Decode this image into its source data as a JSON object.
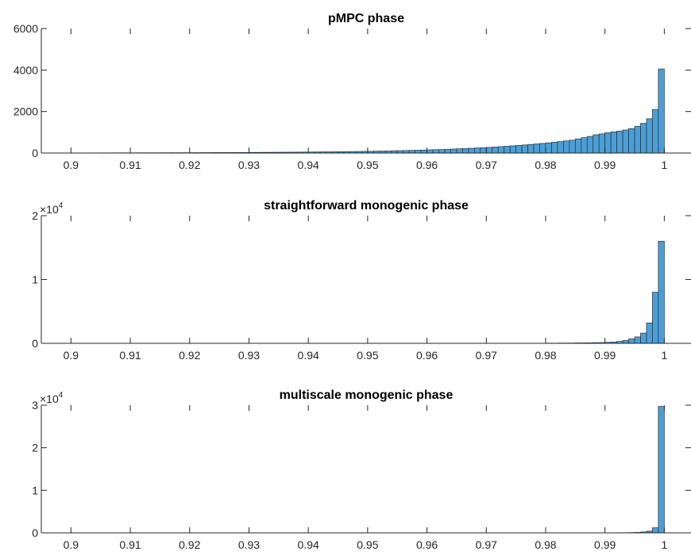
{
  "chart_data": [
    {
      "type": "bar",
      "title": "pMPC phase",
      "xlabel": "",
      "ylabel": "",
      "xlim": [
        0.895,
        1.0045
      ],
      "ylim": [
        0,
        6000
      ],
      "x_ticks": [
        0.9,
        0.91,
        0.92,
        0.93,
        0.94,
        0.95,
        0.96,
        0.97,
        0.98,
        0.99,
        1.0
      ],
      "x_tick_labels": [
        "0.9",
        "0.91",
        "0.92",
        "0.93",
        "0.94",
        "0.95",
        "0.96",
        "0.97",
        "0.98",
        "0.99",
        "1"
      ],
      "y_ticks": [
        0,
        2000,
        4000,
        6000
      ],
      "y_tick_labels": [
        "0",
        "2000",
        "4000",
        "6000"
      ],
      "y_exponent": "",
      "grid": false,
      "bar_color": "#4C9FD6",
      "edge_color": "#1F2F3F",
      "bin_start": 0.9,
      "bin_width": 0.001,
      "values": [
        5,
        6,
        6,
        7,
        7,
        8,
        8,
        9,
        9,
        10,
        10,
        11,
        11,
        12,
        12,
        13,
        14,
        14,
        15,
        16,
        17,
        18,
        19,
        20,
        21,
        22,
        23,
        24,
        25,
        26,
        28,
        29,
        31,
        33,
        35,
        37,
        39,
        41,
        43,
        46,
        48,
        51,
        54,
        57,
        60,
        64,
        67,
        71,
        75,
        80,
        85,
        90,
        95,
        101,
        107,
        113,
        120,
        127,
        135,
        143,
        152,
        161,
        171,
        181,
        192,
        204,
        216,
        229,
        243,
        258,
        273,
        290,
        307,
        326,
        345,
        366,
        388,
        412,
        436,
        462,
        490,
        520,
        552,
        585,
        620,
        680,
        740,
        800,
        880,
        920,
        980,
        1020,
        1060,
        1110,
        1180,
        1290,
        1430,
        1650,
        2100,
        4050
      ]
    },
    {
      "type": "bar",
      "title": "straightforward monogenic phase",
      "xlabel": "",
      "ylabel": "",
      "xlim": [
        0.895,
        1.0045
      ],
      "ylim": [
        0,
        2
      ],
      "x_ticks": [
        0.9,
        0.91,
        0.92,
        0.93,
        0.94,
        0.95,
        0.96,
        0.97,
        0.98,
        0.99,
        1.0
      ],
      "x_tick_labels": [
        "0.9",
        "0.91",
        "0.92",
        "0.93",
        "0.94",
        "0.95",
        "0.96",
        "0.97",
        "0.98",
        "0.99",
        "1"
      ],
      "y_ticks": [
        0,
        1,
        2
      ],
      "y_tick_labels": [
        "0",
        "1",
        "2"
      ],
      "y_exponent": "4",
      "grid": false,
      "bar_color": "#4C9FD6",
      "edge_color": "#1F2F3F",
      "bin_start": 0.9,
      "bin_width": 0.001,
      "values": [
        0,
        0,
        0,
        0,
        0,
        0,
        0,
        0,
        0,
        0,
        0,
        0,
        0,
        0,
        0,
        0,
        0,
        0,
        0,
        0,
        0,
        0,
        0,
        0,
        0,
        0,
        0,
        0,
        0,
        0,
        0,
        0,
        0,
        0,
        0,
        0,
        0,
        0,
        0,
        0,
        0,
        0,
        0,
        0,
        0,
        0,
        0,
        0,
        0,
        0,
        0,
        0,
        0,
        0,
        0,
        0,
        0,
        0,
        0,
        0,
        0,
        0,
        0,
        0,
        0,
        0,
        0,
        0,
        0,
        0,
        0,
        0,
        0,
        0,
        0,
        0,
        0.001,
        0.001,
        0.002,
        0.002,
        0.003,
        0.003,
        0.004,
        0.004,
        0.005,
        0.006,
        0.007,
        0.008,
        0.01,
        0.012,
        0.015,
        0.02,
        0.03,
        0.045,
        0.07,
        0.1,
        0.16,
        0.32,
        0.8,
        1.6
      ]
    },
    {
      "type": "bar",
      "title": "multiscale monogenic phase",
      "xlabel": "",
      "ylabel": "",
      "xlim": [
        0.895,
        1.0045
      ],
      "ylim": [
        0,
        3
      ],
      "x_ticks": [
        0.9,
        0.91,
        0.92,
        0.93,
        0.94,
        0.95,
        0.96,
        0.97,
        0.98,
        0.99,
        1.0
      ],
      "x_tick_labels": [
        "0.9",
        "0.91",
        "0.92",
        "0.93",
        "0.94",
        "0.95",
        "0.96",
        "0.97",
        "0.98",
        "0.99",
        "1"
      ],
      "y_ticks": [
        0,
        1,
        2,
        3
      ],
      "y_tick_labels": [
        "0",
        "1",
        "2",
        "3"
      ],
      "y_exponent": "4",
      "grid": false,
      "bar_color": "#4C9FD6",
      "edge_color": "#1F2F3F",
      "bin_start": 0.9,
      "bin_width": 0.001,
      "values": [
        0,
        0,
        0,
        0,
        0,
        0,
        0,
        0,
        0,
        0,
        0,
        0,
        0,
        0,
        0,
        0,
        0,
        0,
        0,
        0,
        0,
        0,
        0,
        0,
        0,
        0,
        0,
        0,
        0,
        0,
        0,
        0,
        0,
        0,
        0,
        0,
        0,
        0,
        0,
        0,
        0,
        0,
        0,
        0,
        0,
        0,
        0,
        0,
        0,
        0,
        0,
        0,
        0,
        0,
        0,
        0,
        0,
        0,
        0,
        0,
        0,
        0,
        0,
        0,
        0,
        0,
        0,
        0,
        0,
        0,
        0,
        0,
        0,
        0,
        0,
        0,
        0,
        0,
        0,
        0,
        0,
        0,
        0,
        0,
        0,
        0,
        0,
        0.001,
        0.001,
        0.001,
        0.002,
        0.002,
        0.003,
        0.004,
        0.006,
        0.01,
        0.02,
        0.04,
        0.12,
        2.97
      ]
    }
  ]
}
